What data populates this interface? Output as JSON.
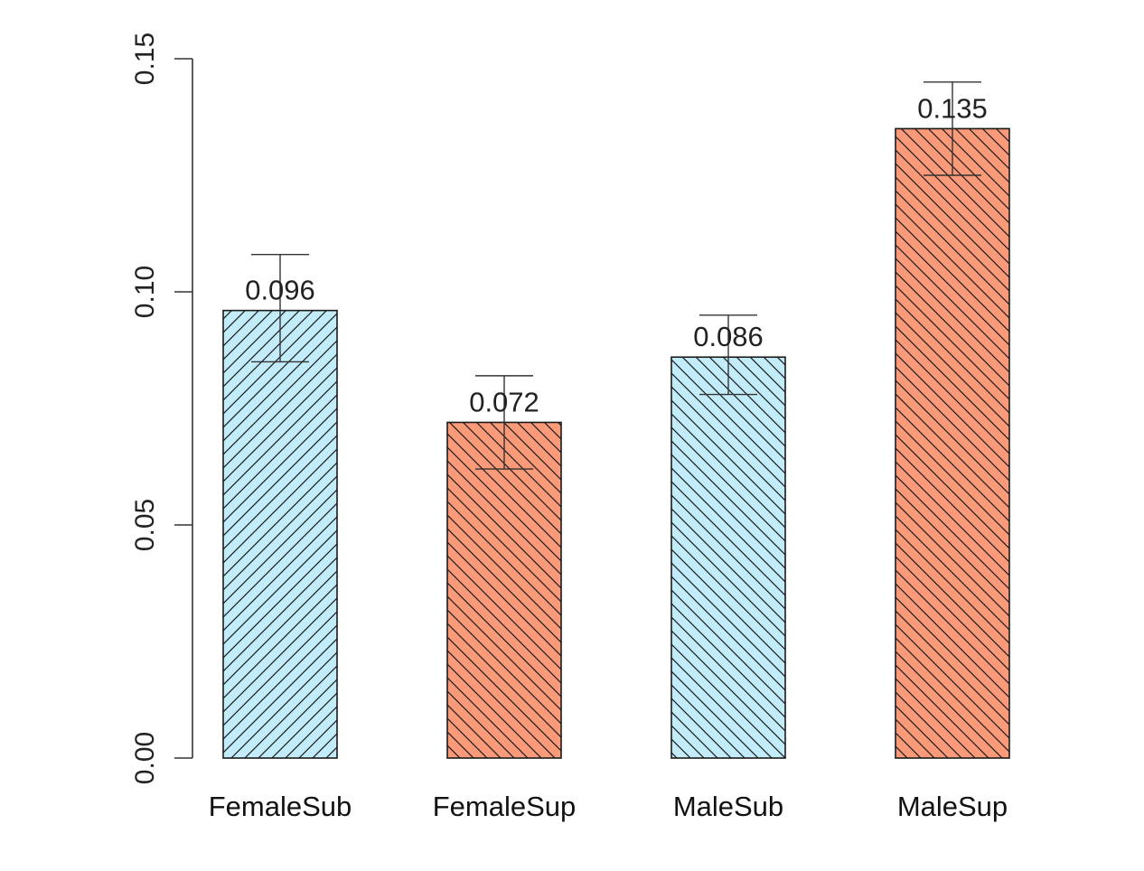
{
  "chart_data": {
    "type": "bar",
    "title": "",
    "xlabel": "",
    "ylabel": "",
    "ylim": [
      0,
      0.15
    ],
    "yticks": [
      0.0,
      0.05,
      0.1,
      0.15
    ],
    "ytick_labels": [
      "0.00",
      "0.05",
      "0.10",
      "0.15"
    ],
    "categories": [
      "FemaleSub",
      "FemaleSup",
      "MaleSub",
      "MaleSup"
    ],
    "values": [
      0.096,
      0.072,
      0.086,
      0.135
    ],
    "value_labels": [
      "0.096",
      "0.072",
      "0.086",
      "0.135"
    ],
    "error_low": [
      0.085,
      0.062,
      0.078,
      0.125
    ],
    "error_high": [
      0.108,
      0.082,
      0.095,
      0.145
    ],
    "bar_colors": [
      "#c3ecfa",
      "#fa9a78",
      "#c3ecfa",
      "#fa9a78"
    ],
    "hatch_direction": [
      "up",
      "down",
      "down",
      "down"
    ],
    "grid": false,
    "legend": "none"
  }
}
